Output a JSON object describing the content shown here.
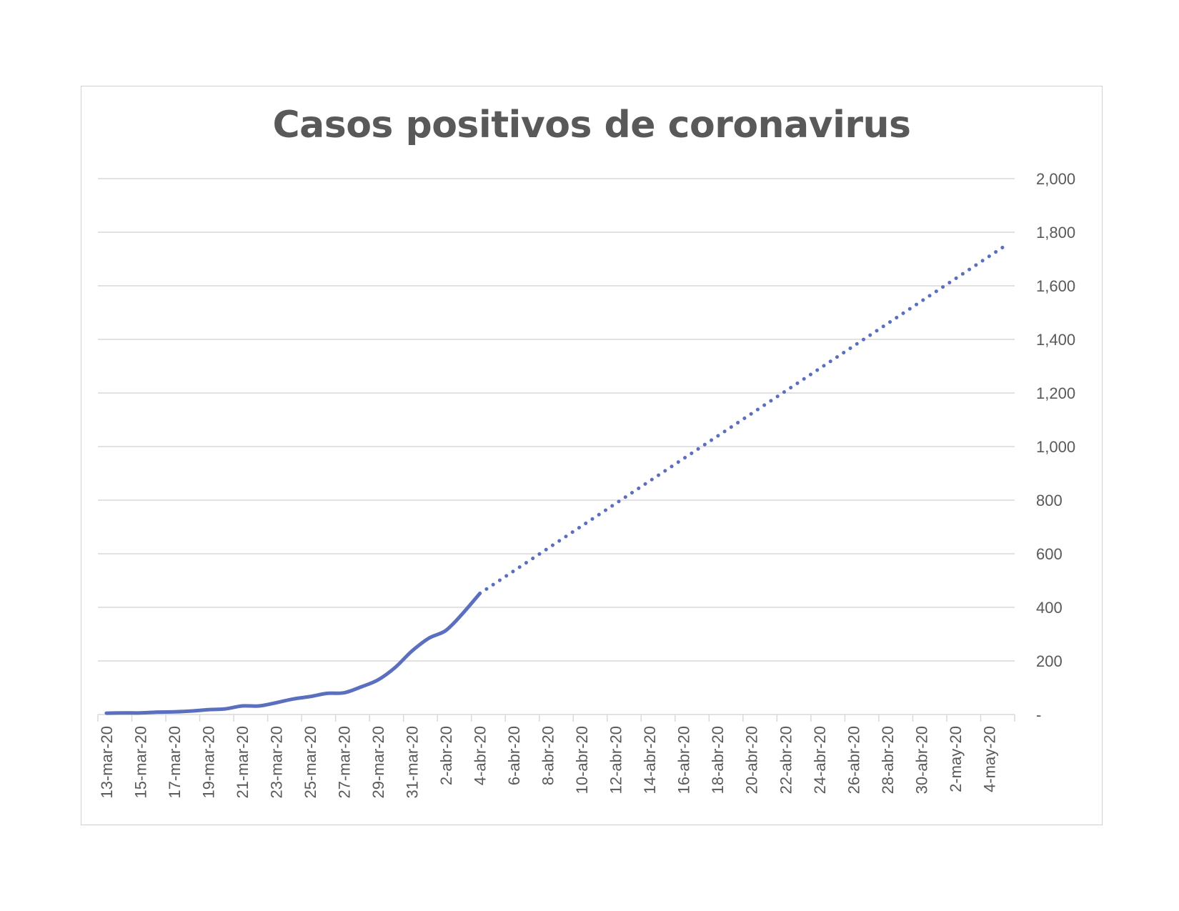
{
  "chart_data": {
    "type": "line",
    "title": "Casos positivos de coronavirus",
    "xlabel": "",
    "ylabel": "",
    "ylim": [
      0,
      2000
    ],
    "yticks": [
      {
        "value": 0,
        "label": "-"
      },
      {
        "value": 200,
        "label": "200"
      },
      {
        "value": 400,
        "label": "400"
      },
      {
        "value": 600,
        "label": "600"
      },
      {
        "value": 800,
        "label": "800"
      },
      {
        "value": 1000,
        "label": "1,000"
      },
      {
        "value": 1200,
        "label": "1,200"
      },
      {
        "value": 1400,
        "label": "1,400"
      },
      {
        "value": 1600,
        "label": "1,600"
      },
      {
        "value": 1800,
        "label": "1,800"
      },
      {
        "value": 2000,
        "label": "2,000"
      }
    ],
    "y_axis_position": "right",
    "grid": true,
    "legend": "none",
    "dates": [
      "13-mar-20",
      "14-mar-20",
      "15-mar-20",
      "16-mar-20",
      "17-mar-20",
      "18-mar-20",
      "19-mar-20",
      "20-mar-20",
      "21-mar-20",
      "22-mar-20",
      "23-mar-20",
      "24-mar-20",
      "25-mar-20",
      "26-mar-20",
      "27-mar-20",
      "28-mar-20",
      "29-mar-20",
      "30-mar-20",
      "31-mar-20",
      "1-abr-20",
      "2-abr-20",
      "3-abr-20",
      "4-abr-20",
      "5-abr-20",
      "6-abr-20",
      "7-abr-20",
      "8-abr-20",
      "9-abr-20",
      "10-abr-20",
      "11-abr-20",
      "12-abr-20",
      "13-abr-20",
      "14-abr-20",
      "15-abr-20",
      "16-abr-20",
      "17-abr-20",
      "18-abr-20",
      "19-abr-20",
      "20-abr-20",
      "21-abr-20",
      "22-abr-20",
      "23-abr-20",
      "24-abr-20",
      "25-abr-20",
      "26-abr-20",
      "27-abr-20",
      "28-abr-20",
      "29-abr-20",
      "30-abr-20",
      "1-may-20",
      "2-may-20",
      "3-may-20",
      "4-may-20",
      "5-may-20"
    ],
    "tick_labels": [
      "13-mar-20",
      "15-mar-20",
      "17-mar-20",
      "19-mar-20",
      "21-mar-20",
      "23-mar-20",
      "25-mar-20",
      "27-mar-20",
      "29-mar-20",
      "31-mar-20",
      "2-abr-20",
      "4-abr-20",
      "6-abr-20",
      "8-abr-20",
      "10-abr-20",
      "12-abr-20",
      "14-abr-20",
      "16-abr-20",
      "18-abr-20",
      "20-abr-20",
      "22-abr-20",
      "24-abr-20",
      "26-abr-20",
      "28-abr-20",
      "30-abr-20",
      "2-may-20",
      "4-may-20"
    ],
    "series": [
      {
        "style": "solid",
        "color": "#5B6FBF",
        "x": [
          "13-mar-20",
          "14-mar-20",
          "15-mar-20",
          "16-mar-20",
          "17-mar-20",
          "18-mar-20",
          "19-mar-20",
          "20-mar-20",
          "21-mar-20",
          "22-mar-20",
          "23-mar-20",
          "24-mar-20",
          "25-mar-20",
          "26-mar-20",
          "27-mar-20",
          "28-mar-20",
          "29-mar-20",
          "30-mar-20",
          "31-mar-20",
          "1-abr-20",
          "2-abr-20",
          "3-abr-20",
          "4-abr-20"
        ],
        "values": [
          5,
          6,
          6,
          9,
          10,
          13,
          18,
          21,
          32,
          32,
          44,
          58,
          67,
          79,
          81,
          103,
          129,
          175,
          237,
          285,
          314,
          378,
          452
        ]
      },
      {
        "style": "dotted",
        "color": "#5B6FBF",
        "x": [
          "4-abr-20",
          "5-may-20"
        ],
        "values": [
          452,
          1752
        ]
      }
    ]
  }
}
